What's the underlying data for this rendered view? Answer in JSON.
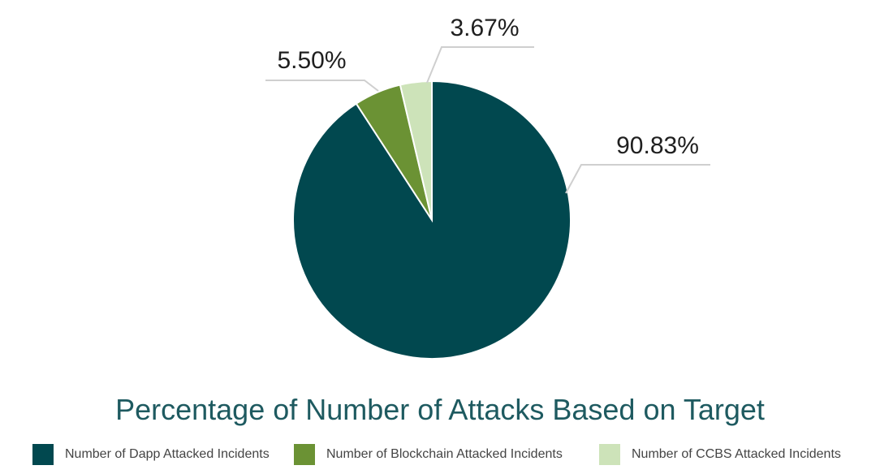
{
  "chart_data": {
    "type": "pie",
    "title": "Percentage of Number of Attacks Based on Target",
    "categories": [
      "Number of Dapp Attacked Incidents",
      "Number of Blockchain Attacked Incidents",
      "Number of CCBS Attacked Incidents"
    ],
    "values": [
      90.83,
      5.5,
      3.67
    ],
    "data_labels": [
      "90.83%",
      "5.50%",
      "3.67%"
    ],
    "colors": [
      "#01484f",
      "#6b9234",
      "#cde3b9"
    ],
    "legend_position": "bottom"
  }
}
